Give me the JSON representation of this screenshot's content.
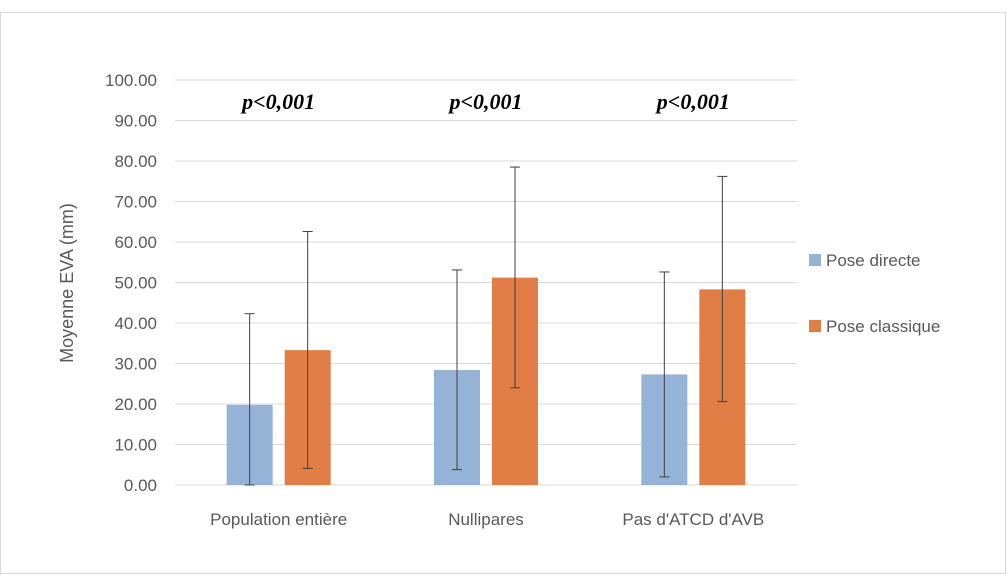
{
  "chart_data": {
    "type": "bar",
    "ylabel": "Moyenne EVA (mm)",
    "xlabel": "",
    "ylim": [
      0,
      100
    ],
    "yticks": [
      "0.00",
      "10.00",
      "20.00",
      "30.00",
      "40.00",
      "50.00",
      "60.00",
      "70.00",
      "80.00",
      "90.00",
      "100.00"
    ],
    "grid": true,
    "legend_position": "right",
    "categories": [
      "Population entière",
      "Nullipares",
      "Pas d'ATCD d'AVB"
    ],
    "series": [
      {
        "name": "Pose directe",
        "color": "#95b3d7",
        "values": [
          19.8,
          28.4,
          27.3
        ],
        "error_low": [
          0,
          3.8,
          2.0
        ],
        "error_high": [
          42.3,
          53.1,
          52.6
        ]
      },
      {
        "name": "Pose classique",
        "color": "#e07e45",
        "values": [
          33.3,
          51.2,
          48.3
        ],
        "error_low": [
          4.1,
          24.0,
          20.6
        ],
        "error_high": [
          62.6,
          78.5,
          76.2
        ]
      }
    ],
    "annotations": [
      "p<0,001",
      "p<0,001",
      "p<0,001"
    ]
  }
}
